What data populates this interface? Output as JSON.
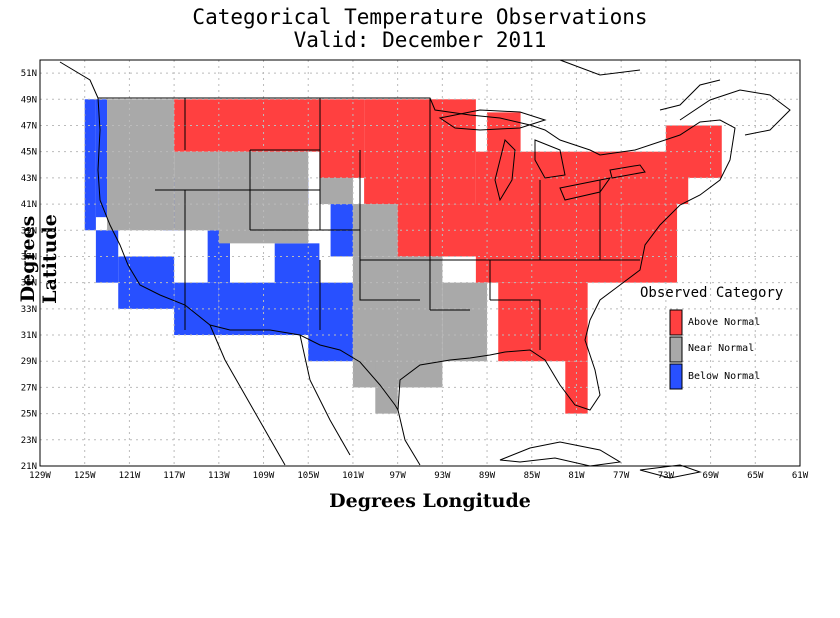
{
  "title": {
    "line1": "Categorical Temperature Observations",
    "line2": "Valid: December 2011"
  },
  "axes": {
    "xlabel": "Degrees Longitude",
    "ylabel": "Degrees Latitude",
    "x_ticks": [
      "129W",
      "125W",
      "121W",
      "117W",
      "113W",
      "109W",
      "105W",
      "101W",
      "97W",
      "93W",
      "89W",
      "85W",
      "81W",
      "77W",
      "73W",
      "69W",
      "65W",
      "61W"
    ],
    "y_ticks": [
      "51N",
      "49N",
      "47N",
      "45N",
      "43N",
      "41N",
      "39N",
      "37N",
      "35N",
      "33N",
      "31N",
      "29N",
      "27N",
      "25N",
      "23N",
      "21N"
    ],
    "xlim": [
      -129,
      -61
    ],
    "ylim": [
      21,
      52
    ],
    "grid": true
  },
  "legend": {
    "title": "Observed Category",
    "placement": "right",
    "items": [
      {
        "label": "Above Normal",
        "color": "#ff4040"
      },
      {
        "label": "Near Normal",
        "color": "#a9a9a9"
      },
      {
        "label": "Below Normal",
        "color": "#2850ff"
      }
    ]
  },
  "colors": {
    "above": "#ff4040",
    "near": "#a9a9a9",
    "below": "#2850ff",
    "grid": "#bbbbbb",
    "outline": "#000000"
  }
}
